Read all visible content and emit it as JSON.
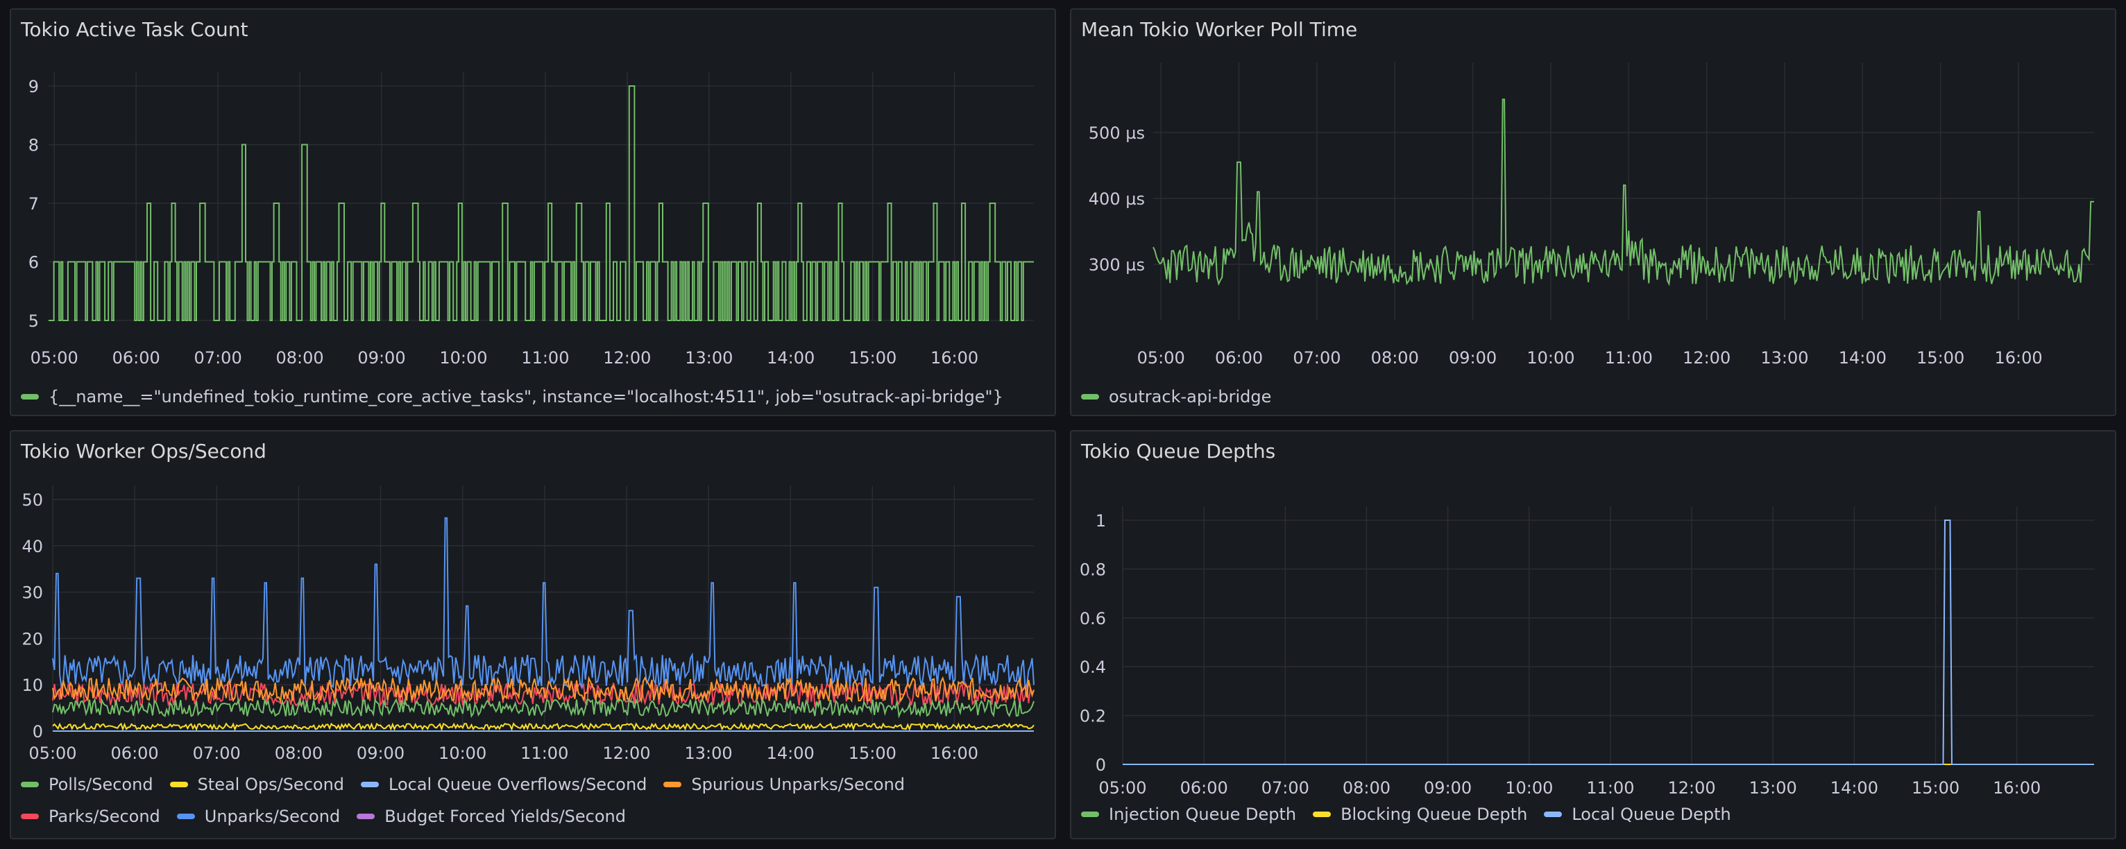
{
  "dashboard": {
    "panels": [
      {
        "title": "Tokio Active Task Count",
        "legend": [
          {
            "label": "{__name__=\"undefined_tokio_runtime_core_active_tasks\", instance=\"localhost:4511\", job=\"osutrack-api-bridge\"}",
            "color": "#73bf69"
          }
        ]
      },
      {
        "title": "Mean Tokio Worker Poll Time",
        "legend": [
          {
            "label": "osutrack-api-bridge",
            "color": "#73bf69"
          }
        ]
      },
      {
        "title": "Tokio Worker Ops/Second",
        "legend_rows": [
          [
            {
              "label": "Polls/Second",
              "color": "#73bf69"
            },
            {
              "label": "Steal Ops/Second",
              "color": "#fade2a"
            },
            {
              "label": "Local Queue Overflows/Second",
              "color": "#8ab8ff"
            },
            {
              "label": "Spurious Unparks/Second",
              "color": "#ff9830"
            }
          ],
          [
            {
              "label": "Parks/Second",
              "color": "#f2495c"
            },
            {
              "label": "Unparks/Second",
              "color": "#5794f2"
            },
            {
              "label": "Budget Forced Yields/Second",
              "color": "#b877d9"
            }
          ]
        ]
      },
      {
        "title": "Tokio Queue Depths",
        "legend": [
          {
            "label": "Injection Queue Depth",
            "color": "#73bf69"
          },
          {
            "label": "Blocking Queue Depth",
            "color": "#fade2a"
          },
          {
            "label": "Local Queue Depth",
            "color": "#8ab8ff"
          }
        ]
      }
    ]
  },
  "chart_data": [
    {
      "type": "line",
      "title": "Tokio Active Task Count",
      "x_ticks": [
        "05:00",
        "06:00",
        "07:00",
        "08:00",
        "09:00",
        "10:00",
        "11:00",
        "12:00",
        "13:00",
        "14:00",
        "15:00",
        "16:00"
      ],
      "y_ticks": [
        "5",
        "6",
        "7",
        "8",
        "9"
      ],
      "xlim": [
        4.93,
        16.97
      ],
      "ylim": [
        5,
        9
      ],
      "series": [
        {
          "name": "{__name__=\"undefined_tokio_runtime_core_active_tasks\", instance=\"localhost:4511\", job=\"osutrack-api-bridge\"}",
          "color": "#73bf69",
          "base": 5.5,
          "noise": 0.5,
          "quantize": 1,
          "rate": 0.42,
          "spikes": [
            [
              6.15,
              7
            ],
            [
              6.45,
              7
            ],
            [
              6.8,
              7
            ],
            [
              7.3,
              8
            ],
            [
              7.7,
              7
            ],
            [
              8.05,
              8
            ],
            [
              8.5,
              7
            ],
            [
              9.0,
              7
            ],
            [
              9.4,
              7
            ],
            [
              9.95,
              7
            ],
            [
              10.5,
              7
            ],
            [
              11.05,
              7
            ],
            [
              11.4,
              7
            ],
            [
              11.75,
              7
            ],
            [
              12.05,
              9
            ],
            [
              12.4,
              7
            ],
            [
              12.95,
              7
            ],
            [
              13.6,
              7
            ],
            [
              14.1,
              7
            ],
            [
              14.6,
              7
            ],
            [
              15.2,
              7
            ],
            [
              15.75,
              7
            ],
            [
              16.1,
              7
            ],
            [
              16.45,
              7
            ]
          ],
          "seed": 11
        }
      ]
    },
    {
      "type": "line",
      "title": "Mean Tokio Worker Poll Time",
      "x_ticks": [
        "05:00",
        "06:00",
        "07:00",
        "08:00",
        "09:00",
        "10:00",
        "11:00",
        "12:00",
        "13:00",
        "14:00",
        "15:00",
        "16:00"
      ],
      "y_ticks": [
        "300 µs",
        "400 µs",
        "500 µs"
      ],
      "y_tick_values": [
        300,
        400,
        500
      ],
      "xlim": [
        4.9,
        16.97
      ],
      "ylim": [
        215,
        585
      ],
      "series": [
        {
          "name": "osutrack-api-bridge",
          "color": "#73bf69",
          "base": 300,
          "noise": 30,
          "spikes": [
            [
              6.0,
              455
            ],
            [
              6.25,
              410
            ],
            [
              9.4,
              550
            ],
            [
              10.95,
              420
            ],
            [
              15.5,
              380
            ],
            [
              16.95,
              395
            ]
          ],
          "bumps": [
            [
              6.1,
              0.25,
              55
            ],
            [
              11.0,
              0.25,
              30
            ]
          ],
          "seed": 23
        }
      ]
    },
    {
      "type": "line",
      "title": "Tokio Worker Ops/Second",
      "x_ticks": [
        "05:00",
        "06:00",
        "07:00",
        "08:00",
        "09:00",
        "10:00",
        "11:00",
        "12:00",
        "13:00",
        "14:00",
        "15:00",
        "16:00"
      ],
      "y_ticks": [
        "0",
        "10",
        "20",
        "30",
        "40",
        "50"
      ],
      "y_tick_values": [
        0,
        10,
        20,
        30,
        40,
        50
      ],
      "xlim": [
        5.0,
        16.97
      ],
      "ylim": [
        0,
        50
      ],
      "series": [
        {
          "name": "Parks/Second",
          "color": "#f2495c",
          "base": 8,
          "noise": 2.5,
          "seed": 3
        },
        {
          "name": "Unparks/Second",
          "color": "#5794f2",
          "base": 13,
          "noise": 3.5,
          "seed": 5,
          "spikes": [
            [
              5.05,
              34
            ],
            [
              6.05,
              33
            ],
            [
              6.95,
              33
            ],
            [
              7.6,
              32
            ],
            [
              8.05,
              33
            ],
            [
              8.95,
              36
            ],
            [
              9.8,
              46
            ],
            [
              10.05,
              27
            ],
            [
              11.0,
              32
            ],
            [
              12.05,
              26
            ],
            [
              13.05,
              32
            ],
            [
              14.05,
              32
            ],
            [
              15.05,
              31
            ],
            [
              16.05,
              29
            ]
          ]
        },
        {
          "name": "Spurious Unparks/Second",
          "color": "#ff9830",
          "base": 9,
          "noise": 2.5,
          "seed": 7
        },
        {
          "name": "Polls/Second",
          "color": "#73bf69",
          "base": 5,
          "noise": 1.8,
          "seed": 9
        },
        {
          "name": "Steal Ops/Second",
          "color": "#fade2a",
          "base": 1,
          "noise": 0.6,
          "seed": 13
        },
        {
          "name": "Budget Forced Yields/Second",
          "color": "#b877d9",
          "base": 0,
          "noise": 0,
          "seed": 17
        },
        {
          "name": "Local Queue Overflows/Second",
          "color": "#8ab8ff",
          "base": 0,
          "noise": 0,
          "seed": 19
        }
      ]
    },
    {
      "type": "line",
      "title": "Tokio Queue Depths",
      "x_ticks": [
        "05:00",
        "06:00",
        "07:00",
        "08:00",
        "09:00",
        "10:00",
        "11:00",
        "12:00",
        "13:00",
        "14:00",
        "15:00",
        "16:00"
      ],
      "y_ticks": [
        "0",
        "0.2",
        "0.4",
        "0.6",
        "0.8",
        "1"
      ],
      "y_tick_values": [
        0,
        0.2,
        0.4,
        0.6,
        0.8,
        1
      ],
      "xlim": [
        5.0,
        16.95
      ],
      "ylim": [
        0,
        1
      ],
      "series": [
        {
          "name": "Injection Queue Depth",
          "color": "#73bf69",
          "base": 0,
          "noise": 0,
          "seed": 1
        },
        {
          "name": "Blocking Queue Depth",
          "color": "#fade2a",
          "base": 0,
          "noise": 0,
          "seed": 2
        },
        {
          "name": "Local Queue Depth",
          "color": "#8ab8ff",
          "base": 0,
          "noise": 0,
          "seed": 4,
          "spikes": [
            [
              15.15,
              1
            ]
          ],
          "spike_width": 0.04
        }
      ]
    }
  ]
}
